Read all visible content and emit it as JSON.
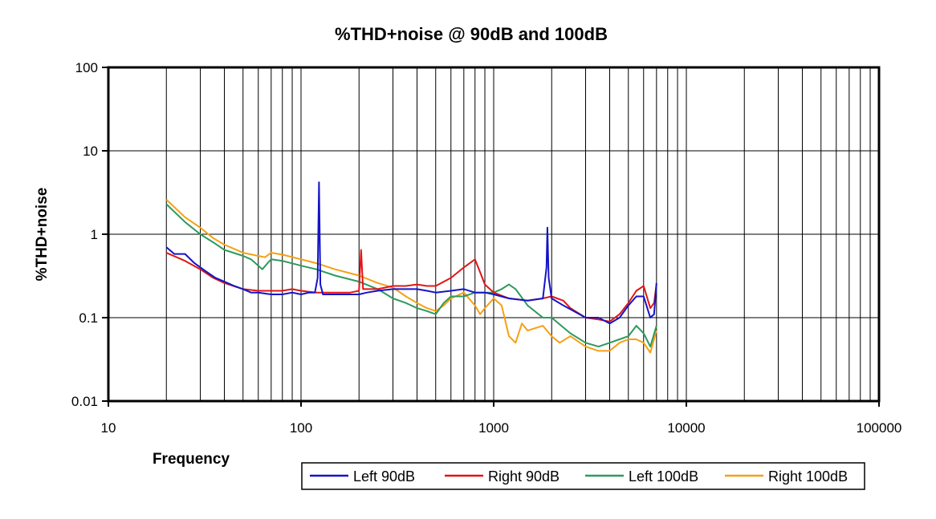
{
  "chart_data": {
    "type": "line",
    "title": "%THD+noise @ 90dB and 100dB",
    "xlabel": "Frequency",
    "ylabel": "%THD+noise",
    "x_scale": "log",
    "y_scale": "log",
    "xlim": [
      10,
      100000
    ],
    "ylim": [
      0.01,
      100
    ],
    "x_ticks": [
      "10",
      "100",
      "1000",
      "10000",
      "100000"
    ],
    "y_ticks": [
      "0.01",
      "0.1",
      "1",
      "10",
      "100"
    ],
    "grid": true,
    "legend_position": "bottom-right",
    "series": [
      {
        "name": "Left 90dB",
        "color": "#1414c8",
        "points": [
          [
            20,
            0.7
          ],
          [
            22,
            0.58
          ],
          [
            25,
            0.58
          ],
          [
            28,
            0.45
          ],
          [
            32,
            0.36
          ],
          [
            36,
            0.3
          ],
          [
            40,
            0.27
          ],
          [
            45,
            0.24
          ],
          [
            50,
            0.22
          ],
          [
            55,
            0.2
          ],
          [
            60,
            0.2
          ],
          [
            70,
            0.19
          ],
          [
            80,
            0.19
          ],
          [
            90,
            0.2
          ],
          [
            100,
            0.19
          ],
          [
            110,
            0.2
          ],
          [
            118,
            0.2
          ],
          [
            122,
            0.3
          ],
          [
            124,
            4.2
          ],
          [
            126,
            0.25
          ],
          [
            130,
            0.19
          ],
          [
            150,
            0.19
          ],
          [
            180,
            0.19
          ],
          [
            200,
            0.19
          ],
          [
            220,
            0.2
          ],
          [
            250,
            0.21
          ],
          [
            300,
            0.22
          ],
          [
            350,
            0.22
          ],
          [
            400,
            0.22
          ],
          [
            450,
            0.21
          ],
          [
            500,
            0.2
          ],
          [
            600,
            0.21
          ],
          [
            700,
            0.22
          ],
          [
            800,
            0.2
          ],
          [
            900,
            0.2
          ],
          [
            1000,
            0.19
          ],
          [
            1200,
            0.17
          ],
          [
            1500,
            0.16
          ],
          [
            1800,
            0.17
          ],
          [
            1880,
            0.4
          ],
          [
            1900,
            1.2
          ],
          [
            1930,
            0.3
          ],
          [
            2000,
            0.17
          ],
          [
            2300,
            0.14
          ],
          [
            2600,
            0.12
          ],
          [
            3000,
            0.1
          ],
          [
            3500,
            0.1
          ],
          [
            4000,
            0.085
          ],
          [
            4500,
            0.1
          ],
          [
            5000,
            0.14
          ],
          [
            5500,
            0.18
          ],
          [
            6000,
            0.18
          ],
          [
            6500,
            0.1
          ],
          [
            6800,
            0.11
          ],
          [
            7000,
            0.26
          ]
        ]
      },
      {
        "name": "Right 90dB",
        "color": "#e01616",
        "points": [
          [
            20,
            0.6
          ],
          [
            25,
            0.48
          ],
          [
            30,
            0.38
          ],
          [
            35,
            0.3
          ],
          [
            40,
            0.26
          ],
          [
            50,
            0.22
          ],
          [
            60,
            0.21
          ],
          [
            70,
            0.21
          ],
          [
            80,
            0.21
          ],
          [
            90,
            0.22
          ],
          [
            100,
            0.21
          ],
          [
            120,
            0.2
          ],
          [
            150,
            0.2
          ],
          [
            180,
            0.2
          ],
          [
            200,
            0.21
          ],
          [
            205,
            0.65
          ],
          [
            210,
            0.22
          ],
          [
            250,
            0.22
          ],
          [
            300,
            0.24
          ],
          [
            350,
            0.24
          ],
          [
            400,
            0.25
          ],
          [
            450,
            0.24
          ],
          [
            500,
            0.24
          ],
          [
            600,
            0.3
          ],
          [
            700,
            0.4
          ],
          [
            800,
            0.5
          ],
          [
            850,
            0.35
          ],
          [
            900,
            0.25
          ],
          [
            1000,
            0.2
          ],
          [
            1200,
            0.17
          ],
          [
            1500,
            0.16
          ],
          [
            1800,
            0.17
          ],
          [
            2000,
            0.18
          ],
          [
            2300,
            0.16
          ],
          [
            2500,
            0.13
          ],
          [
            3000,
            0.1
          ],
          [
            3500,
            0.095
          ],
          [
            4000,
            0.09
          ],
          [
            4500,
            0.11
          ],
          [
            5000,
            0.15
          ],
          [
            5500,
            0.21
          ],
          [
            6000,
            0.24
          ],
          [
            6500,
            0.13
          ],
          [
            6800,
            0.15
          ],
          [
            7000,
            0.25
          ]
        ]
      },
      {
        "name": "Left 100dB",
        "color": "#2e9a5e",
        "points": [
          [
            20,
            2.3
          ],
          [
            25,
            1.4
          ],
          [
            30,
            1.0
          ],
          [
            35,
            0.8
          ],
          [
            40,
            0.65
          ],
          [
            50,
            0.55
          ],
          [
            55,
            0.5
          ],
          [
            60,
            0.42
          ],
          [
            63,
            0.38
          ],
          [
            67,
            0.45
          ],
          [
            70,
            0.5
          ],
          [
            80,
            0.48
          ],
          [
            100,
            0.42
          ],
          [
            120,
            0.38
          ],
          [
            150,
            0.32
          ],
          [
            200,
            0.27
          ],
          [
            250,
            0.22
          ],
          [
            300,
            0.17
          ],
          [
            350,
            0.15
          ],
          [
            400,
            0.13
          ],
          [
            450,
            0.12
          ],
          [
            500,
            0.11
          ],
          [
            550,
            0.15
          ],
          [
            600,
            0.18
          ],
          [
            700,
            0.18
          ],
          [
            800,
            0.2
          ],
          [
            900,
            0.2
          ],
          [
            1000,
            0.2
          ],
          [
            1100,
            0.22
          ],
          [
            1200,
            0.25
          ],
          [
            1300,
            0.22
          ],
          [
            1500,
            0.14
          ],
          [
            1800,
            0.1
          ],
          [
            2000,
            0.1
          ],
          [
            2500,
            0.065
          ],
          [
            3000,
            0.05
          ],
          [
            3500,
            0.045
          ],
          [
            4000,
            0.05
          ],
          [
            4500,
            0.055
          ],
          [
            5000,
            0.06
          ],
          [
            5500,
            0.08
          ],
          [
            6000,
            0.065
          ],
          [
            6500,
            0.045
          ],
          [
            7000,
            0.08
          ]
        ]
      },
      {
        "name": "Right 100dB",
        "color": "#f5a014",
        "points": [
          [
            20,
            2.6
          ],
          [
            25,
            1.6
          ],
          [
            30,
            1.2
          ],
          [
            35,
            0.9
          ],
          [
            40,
            0.75
          ],
          [
            50,
            0.6
          ],
          [
            60,
            0.55
          ],
          [
            65,
            0.53
          ],
          [
            70,
            0.6
          ],
          [
            80,
            0.57
          ],
          [
            100,
            0.5
          ],
          [
            120,
            0.45
          ],
          [
            150,
            0.38
          ],
          [
            200,
            0.32
          ],
          [
            250,
            0.26
          ],
          [
            300,
            0.23
          ],
          [
            350,
            0.18
          ],
          [
            400,
            0.15
          ],
          [
            450,
            0.13
          ],
          [
            500,
            0.12
          ],
          [
            550,
            0.14
          ],
          [
            600,
            0.17
          ],
          [
            700,
            0.2
          ],
          [
            800,
            0.14
          ],
          [
            850,
            0.11
          ],
          [
            900,
            0.13
          ],
          [
            1000,
            0.17
          ],
          [
            1100,
            0.14
          ],
          [
            1200,
            0.06
          ],
          [
            1300,
            0.05
          ],
          [
            1400,
            0.085
          ],
          [
            1500,
            0.07
          ],
          [
            1800,
            0.08
          ],
          [
            2000,
            0.06
          ],
          [
            2200,
            0.05
          ],
          [
            2500,
            0.06
          ],
          [
            3000,
            0.045
          ],
          [
            3500,
            0.04
          ],
          [
            4000,
            0.04
          ],
          [
            4500,
            0.05
          ],
          [
            5000,
            0.055
          ],
          [
            5500,
            0.055
          ],
          [
            6000,
            0.05
          ],
          [
            6500,
            0.038
          ],
          [
            7000,
            0.07
          ]
        ]
      }
    ]
  }
}
